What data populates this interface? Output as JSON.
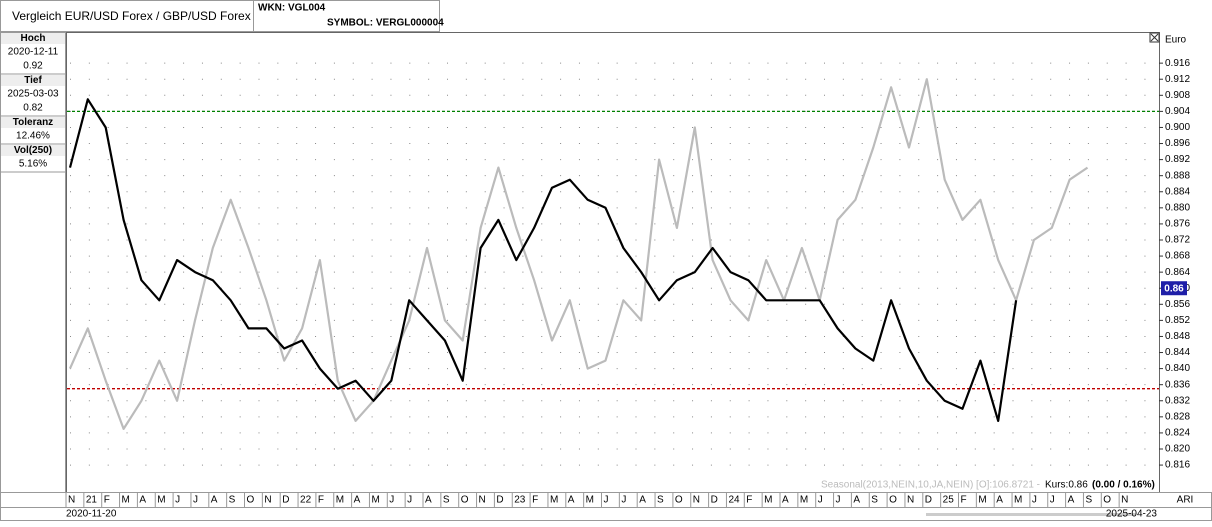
{
  "header": {
    "title": "Vergleich EUR/USD Forex / GBP/USD Forex",
    "wkn": "WKN: VGL004",
    "symbol": "SYMBOL: VERGL000004"
  },
  "stats": [
    {
      "label": "Hoch",
      "date": "2020-12-11",
      "value": "0.92"
    },
    {
      "label": "Tief",
      "date": "2025-03-03",
      "value": "0.82"
    },
    {
      "label": "Toleranz",
      "value": "12.46%"
    },
    {
      "label": "Vol(250)",
      "value": "5.16%"
    }
  ],
  "chart_data": {
    "type": "line",
    "y_label": "Euro",
    "categories": [
      "N",
      "21",
      "F",
      "M",
      "A",
      "M",
      "J",
      "J",
      "A",
      "S",
      "O",
      "N",
      "D",
      "22",
      "F",
      "M",
      "A",
      "M",
      "J",
      "J",
      "A",
      "S",
      "O",
      "N",
      "D",
      "23",
      "F",
      "M",
      "A",
      "M",
      "J",
      "J",
      "A",
      "S",
      "O",
      "N",
      "D",
      "24",
      "F",
      "M",
      "A",
      "M",
      "J",
      "J",
      "A",
      "S",
      "O",
      "N",
      "D",
      "25",
      "F",
      "M",
      "A",
      "M",
      "J",
      "J",
      "A",
      "S",
      "O",
      "N"
    ],
    "series": [
      {
        "name": "EUR/USD Forex / GBP/USD Forex",
        "color": "#000000",
        "values": [
          0.89,
          0.907,
          0.9,
          0.877,
          0.862,
          0.857,
          0.867,
          0.864,
          0.862,
          0.857,
          0.85,
          0.85,
          0.845,
          0.847,
          0.84,
          0.835,
          0.837,
          0.832,
          0.837,
          0.857,
          0.852,
          0.847,
          0.837,
          0.87,
          0.877,
          0.867,
          0.875,
          0.885,
          0.887,
          0.882,
          0.88,
          0.87,
          0.864,
          0.857,
          0.862,
          0.864,
          0.87,
          0.864,
          0.862,
          0.857,
          0.857,
          0.857,
          0.857,
          0.85,
          0.845,
          0.842,
          0.857,
          0.845,
          0.837,
          0.832,
          0.83,
          0.842,
          0.827,
          0.857,
          null,
          null,
          null,
          null,
          null,
          null
        ]
      },
      {
        "name": "Seasonal",
        "color": "#bbbbbb",
        "values": [
          0.84,
          0.85,
          0.837,
          0.825,
          0.832,
          0.842,
          0.832,
          0.852,
          0.87,
          0.882,
          0.87,
          0.857,
          0.842,
          0.85,
          0.867,
          0.837,
          0.827,
          0.832,
          0.842,
          0.852,
          0.87,
          0.852,
          0.847,
          0.875,
          0.89,
          0.875,
          0.862,
          0.847,
          0.857,
          0.84,
          0.842,
          0.857,
          0.852,
          0.892,
          0.875,
          0.9,
          0.867,
          0.857,
          0.852,
          0.867,
          0.857,
          0.87,
          0.857,
          0.877,
          0.882,
          0.895,
          0.91,
          0.895,
          0.912,
          0.887,
          0.877,
          0.882,
          0.867,
          0.857,
          0.872,
          0.875,
          0.887,
          0.89,
          null,
          null
        ]
      }
    ],
    "ylim": [
      0.8093,
      0.9235
    ],
    "yticks": [
      0.816,
      {
        "value": 0.82,
        "label": "0.820"
      },
      0.824,
      0.828,
      0.832,
      0.836,
      {
        "value": 0.84,
        "label": "0.840"
      },
      0.844,
      0.848,
      0.852,
      0.856,
      {
        "value": 0.86,
        "label": "0.860"
      },
      0.864,
      0.868,
      0.872,
      0.876,
      {
        "value": 0.88,
        "label": "0.880"
      },
      0.884,
      0.888,
      0.892,
      0.896,
      {
        "value": 0.9,
        "label": "0.900"
      },
      0.904,
      0.908,
      0.912,
      0.916
    ],
    "grid": true,
    "ref_lines": [
      {
        "value": 0.904,
        "color": "#008000"
      },
      {
        "value": 0.835,
        "color": "#c00000"
      }
    ],
    "last": 0.86
  },
  "footer": {
    "seasonal": "Seasonal(2013,NEIN,10,JA,NEIN) [O]:106.8721 -",
    "kurs": "Kurs:0.86",
    "change": "(0.00 / 0.16%)",
    "start": "2020-11-20",
    "end": "2025-04-23",
    "corner": "ARI"
  }
}
